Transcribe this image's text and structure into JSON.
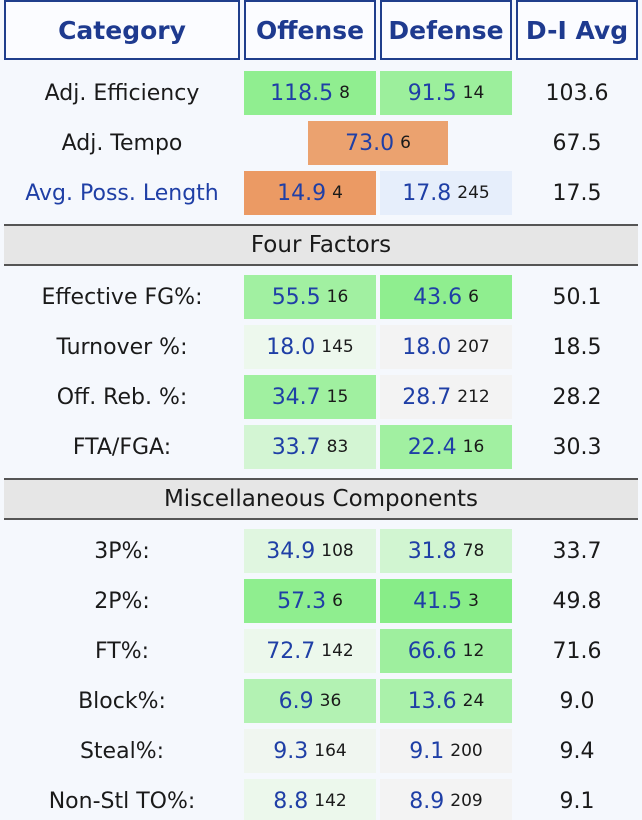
{
  "headers": {
    "category": "Category",
    "offense": "Offense",
    "defense": "Defense",
    "avg": "D-I Avg"
  },
  "top": [
    {
      "label": "Adj. Efficiency",
      "off": {
        "v": "118.5",
        "r": "8",
        "bg": "#90ee90"
      },
      "def": {
        "v": "91.5",
        "r": "14",
        "bg": "#9cef9c"
      },
      "avg": "103.6"
    },
    {
      "label": "Adj. Tempo",
      "combined": {
        "v": "73.0",
        "r": "6",
        "bg": "#eba26f"
      },
      "avg": "67.5"
    },
    {
      "label": "Avg. Poss. Length",
      "link": true,
      "off": {
        "v": "14.9",
        "r": "4",
        "bg": "#eb9a64"
      },
      "def": {
        "v": "17.8",
        "r": "245",
        "bg": "#e6eefb"
      },
      "avg": "17.5"
    }
  ],
  "sections": [
    {
      "title": "Four Factors",
      "rows": [
        {
          "label": "Effective FG%:",
          "off": {
            "v": "55.5",
            "r": "16",
            "bg": "#a1f0a1"
          },
          "def": {
            "v": "43.6",
            "r": "6",
            "bg": "#8fee8f"
          },
          "avg": "50.1"
        },
        {
          "label": "Turnover %:",
          "off": {
            "v": "18.0",
            "r": "145",
            "bg": "#edf8ed"
          },
          "def": {
            "v": "18.0",
            "r": "207",
            "bg": "#f3f3f3"
          },
          "avg": "18.5"
        },
        {
          "label": "Off. Reb. %:",
          "off": {
            "v": "34.7",
            "r": "15",
            "bg": "#a0f0a0"
          },
          "def": {
            "v": "28.7",
            "r": "212",
            "bg": "#f3f3f3"
          },
          "avg": "28.2"
        },
        {
          "label": "FTA/FGA:",
          "off": {
            "v": "33.7",
            "r": "83",
            "bg": "#d3f5d3"
          },
          "def": {
            "v": "22.4",
            "r": "16",
            "bg": "#a1f0a1"
          },
          "avg": "30.3"
        }
      ]
    },
    {
      "title": "Miscellaneous Components",
      "rows": [
        {
          "label": "3P%:",
          "off": {
            "v": "34.9",
            "r": "108",
            "bg": "#e0f6e0"
          },
          "def": {
            "v": "31.8",
            "r": "78",
            "bg": "#d1f5d1"
          },
          "avg": "33.7"
        },
        {
          "label": "2P%:",
          "off": {
            "v": "57.3",
            "r": "6",
            "bg": "#8fee8f"
          },
          "def": {
            "v": "41.5",
            "r": "3",
            "bg": "#88ed88"
          },
          "avg": "49.8"
        },
        {
          "label": "FT%:",
          "off": {
            "v": "72.7",
            "r": "142",
            "bg": "#ecf8ec"
          },
          "def": {
            "v": "66.6",
            "r": "12",
            "bg": "#9eef9e"
          },
          "avg": "71.6"
        },
        {
          "label": "Block%:",
          "off": {
            "v": "6.9",
            "r": "36",
            "bg": "#b3f2b3"
          },
          "def": {
            "v": "13.6",
            "r": "24",
            "bg": "#aaf1aa"
          },
          "avg": "9.0"
        },
        {
          "label": "Steal%:",
          "off": {
            "v": "9.3",
            "r": "164",
            "bg": "#f0f6f0"
          },
          "def": {
            "v": "9.1",
            "r": "200",
            "bg": "#f3f3f3"
          },
          "avg": "9.4"
        },
        {
          "label": "Non-Stl TO%:",
          "off": {
            "v": "8.8",
            "r": "142",
            "bg": "#ecf8ec"
          },
          "def": {
            "v": "8.9",
            "r": "209",
            "bg": "#f3f3f3"
          },
          "avg": "9.1"
        }
      ]
    }
  ]
}
